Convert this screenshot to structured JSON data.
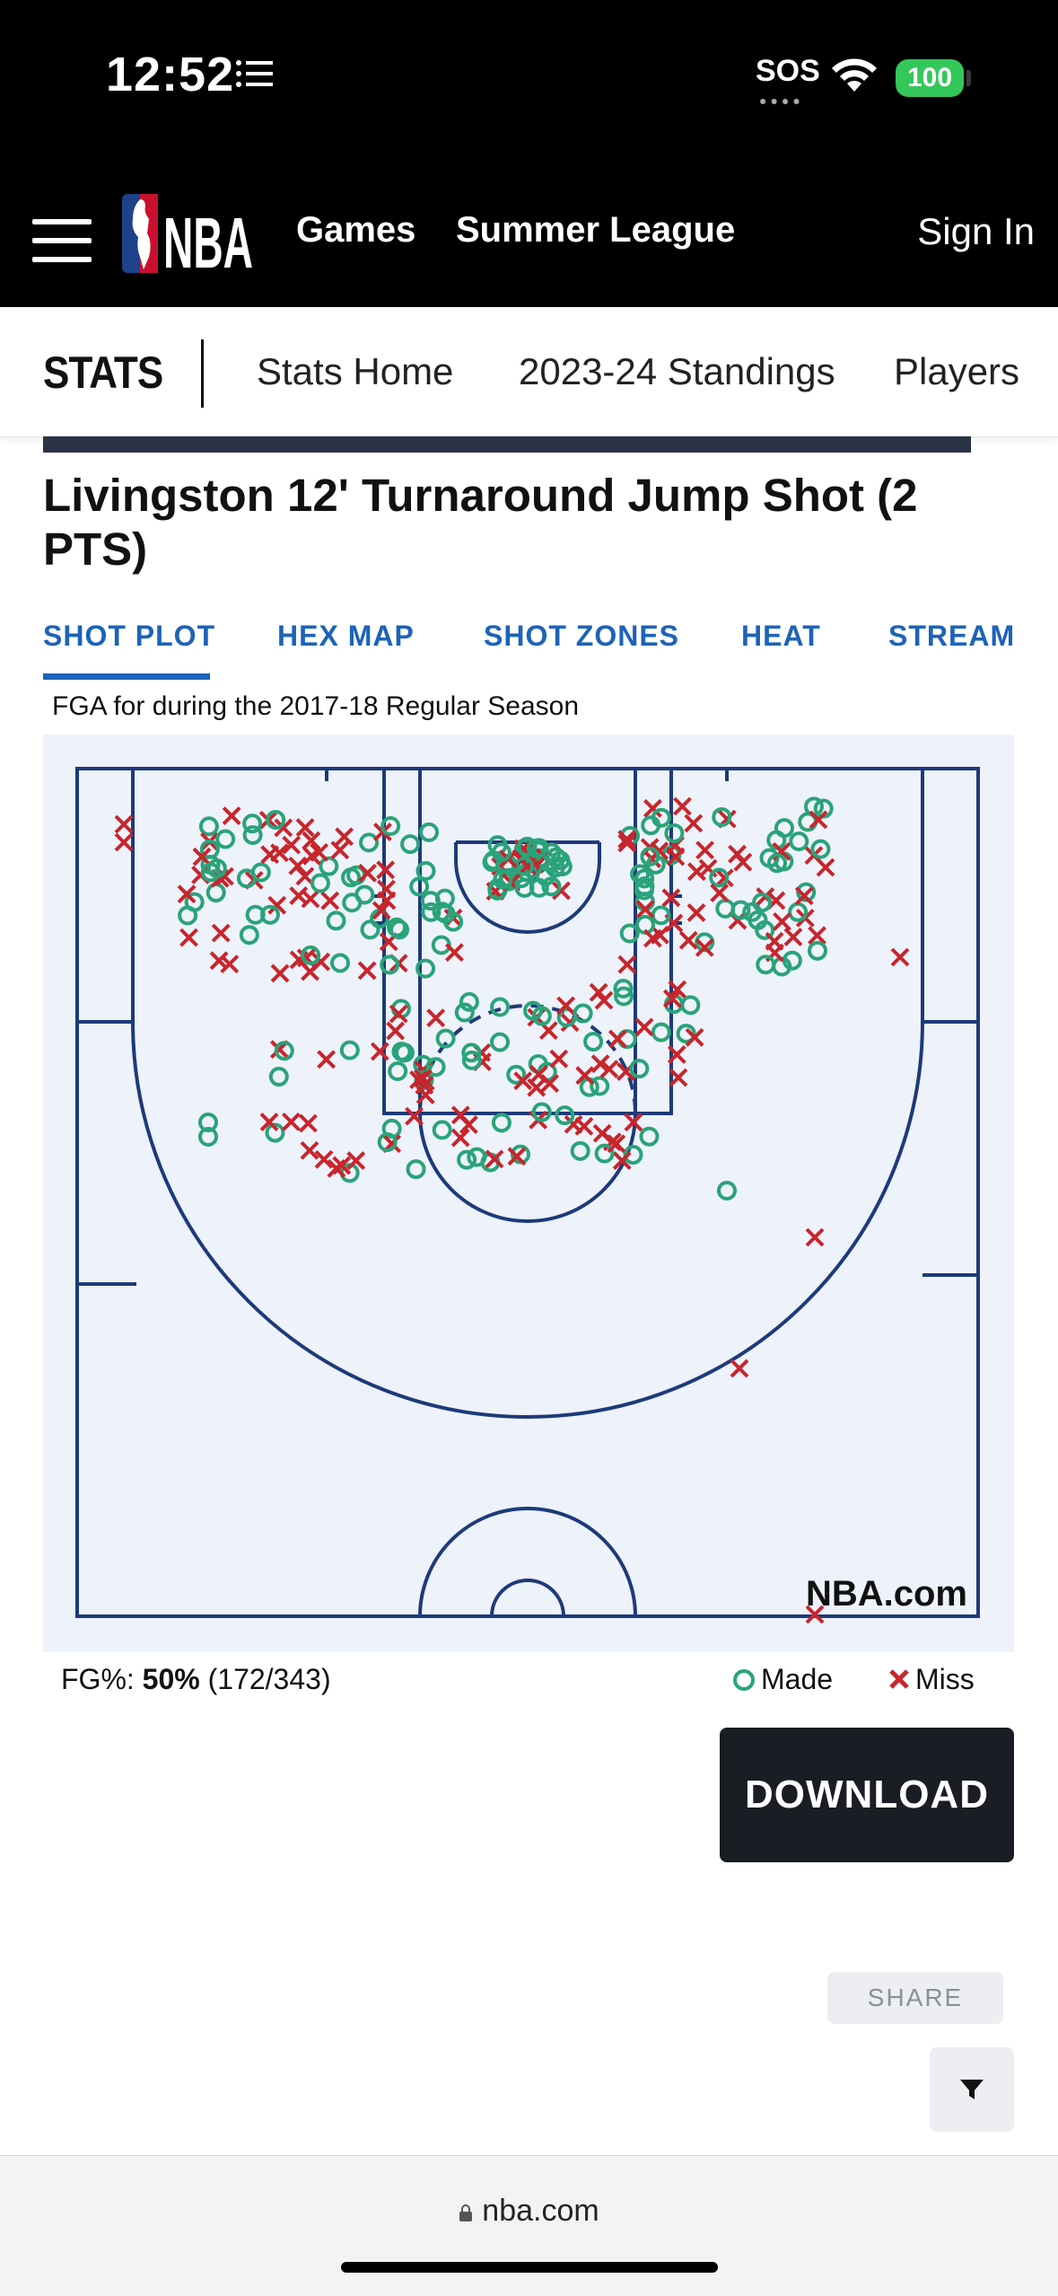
{
  "status_bar": {
    "time": "12:52",
    "sos": "SOS",
    "battery": "100",
    "icons": [
      "list-icon",
      "wifi-icon",
      "battery-icon"
    ]
  },
  "nav": {
    "links": [
      "Games",
      "Summer League"
    ],
    "sign_in": "Sign In",
    "logo": "NBA"
  },
  "stats_nav": {
    "label": "STATS",
    "links": [
      "Stats Home",
      "2023-24 Standings",
      "Players"
    ]
  },
  "page": {
    "title": "Livingston 12' Turnaround Jump Shot (2 PTS)",
    "subtitle": "FGA for during the 2017-18 Regular Season"
  },
  "tabs": [
    "SHOT PLOT",
    "HEX MAP",
    "SHOT ZONES",
    "HEAT",
    "STREAM"
  ],
  "active_tab": "SHOT PLOT",
  "court": {
    "watermark": "NBA.com"
  },
  "footer_stats": {
    "fg_label": "FG%: ",
    "fg_pct": "50%",
    "fg_count": "(172/343)",
    "made_label": "Made",
    "miss_label": "Miss"
  },
  "buttons": {
    "download": "DOWNLOAD",
    "share": "SHARE"
  },
  "browser": {
    "url": "nba.com"
  },
  "colors": {
    "made": "#2aa37a",
    "miss": "#c8252c",
    "court_line": "#1d3a7a",
    "tab_blue": "#1d63b8"
  },
  "chart_data": {
    "type": "scatter",
    "fg_made": 172,
    "fg_attempts": 343,
    "legend": [
      "Made",
      "Miss"
    ]
  }
}
